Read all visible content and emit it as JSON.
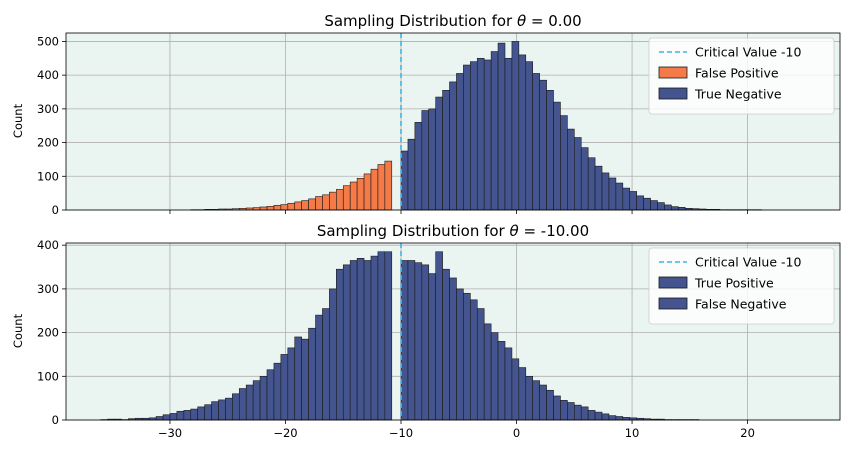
{
  "colors": {
    "background": "#eaf4f0",
    "grid": "#b0b0b0",
    "critical_line": "#3fb3e6",
    "positive_bar": "#f47a48",
    "negative_bar": "#44548f",
    "bar_edge": "#1a1a1a"
  },
  "chart_data": [
    {
      "type": "bar",
      "title_prefix": "Sampling Distribution for ",
      "title_symbol": "θ",
      "title_suffix": " = 0.00",
      "ylabel": "Count",
      "xlim": [
        -39,
        28
      ],
      "ylim": [
        0,
        525
      ],
      "xticks": [
        -30,
        -20,
        -10,
        0,
        10,
        20
      ],
      "yticks": [
        0,
        100,
        200,
        300,
        400,
        500
      ],
      "show_xtick_labels": false,
      "grid": true,
      "critical_value": -10,
      "legend_position": "top-right",
      "legend": [
        "Critical Value -10",
        "False Positive",
        "True Negative"
      ],
      "bin_start": -36,
      "bin_width": 0.6,
      "series": [
        {
          "name": "False Positive",
          "color_key": "positive_bar",
          "x_start": -36,
          "values": [
            0,
            0,
            0,
            0,
            0,
            0,
            0,
            0,
            0,
            0,
            0,
            0,
            0,
            1,
            1,
            2,
            2,
            3,
            3,
            4,
            5,
            6,
            7,
            9,
            11,
            14,
            16,
            20,
            24,
            28,
            33,
            40,
            45,
            53,
            61,
            72,
            83,
            94,
            107,
            121,
            135,
            145
          ]
        },
        {
          "name": "True Negative",
          "color_key": "negative_bar",
          "x_start": -10,
          "values": [
            175,
            210,
            260,
            295,
            300,
            335,
            355,
            380,
            405,
            430,
            440,
            450,
            445,
            470,
            495,
            450,
            500,
            460,
            440,
            405,
            385,
            355,
            320,
            280,
            240,
            215,
            185,
            155,
            130,
            110,
            95,
            80,
            65,
            55,
            42,
            35,
            28,
            22,
            15,
            10,
            8,
            5,
            4,
            3,
            2,
            2,
            1,
            1,
            1,
            1,
            1,
            1,
            0,
            0,
            0,
            0,
            0,
            0
          ]
        }
      ]
    },
    {
      "type": "bar",
      "title_prefix": "Sampling Distribution for ",
      "title_symbol": "θ",
      "title_suffix": " = -10.00",
      "ylabel": "Count",
      "xlim": [
        -39,
        28
      ],
      "ylim": [
        0,
        405
      ],
      "xticks": [
        -30,
        -20,
        -10,
        0,
        10,
        20
      ],
      "yticks": [
        0,
        100,
        200,
        300,
        400
      ],
      "show_xtick_labels": true,
      "grid": true,
      "critical_value": -10,
      "legend_position": "top-right",
      "legend": [
        "Critical Value -10",
        "True Positive",
        "False Negative"
      ],
      "bin_start": -36,
      "bin_width": 0.6,
      "series": [
        {
          "name": "True Positive",
          "color_key": "negative_bar",
          "x_start": -36,
          "values": [
            1,
            2,
            2,
            1,
            3,
            4,
            4,
            5,
            8,
            12,
            15,
            20,
            22,
            25,
            30,
            35,
            42,
            46,
            50,
            60,
            72,
            80,
            90,
            100,
            115,
            130,
            150,
            165,
            190,
            185,
            210,
            240,
            255,
            300,
            345,
            355,
            365,
            370,
            365,
            375,
            385,
            385
          ]
        },
        {
          "name": "False Negative",
          "color_key": "negative_bar",
          "x_start": -10,
          "values": [
            365,
            365,
            360,
            355,
            335,
            385,
            345,
            325,
            300,
            290,
            275,
            255,
            220,
            200,
            180,
            165,
            140,
            120,
            100,
            90,
            80,
            68,
            55,
            45,
            40,
            34,
            30,
            22,
            18,
            14,
            10,
            8,
            6,
            5,
            4,
            3,
            2,
            2,
            1,
            1,
            1,
            1,
            1,
            0,
            0,
            0,
            0,
            0,
            0,
            0,
            0,
            0,
            0,
            0,
            0,
            0,
            0,
            0
          ]
        }
      ]
    }
  ]
}
